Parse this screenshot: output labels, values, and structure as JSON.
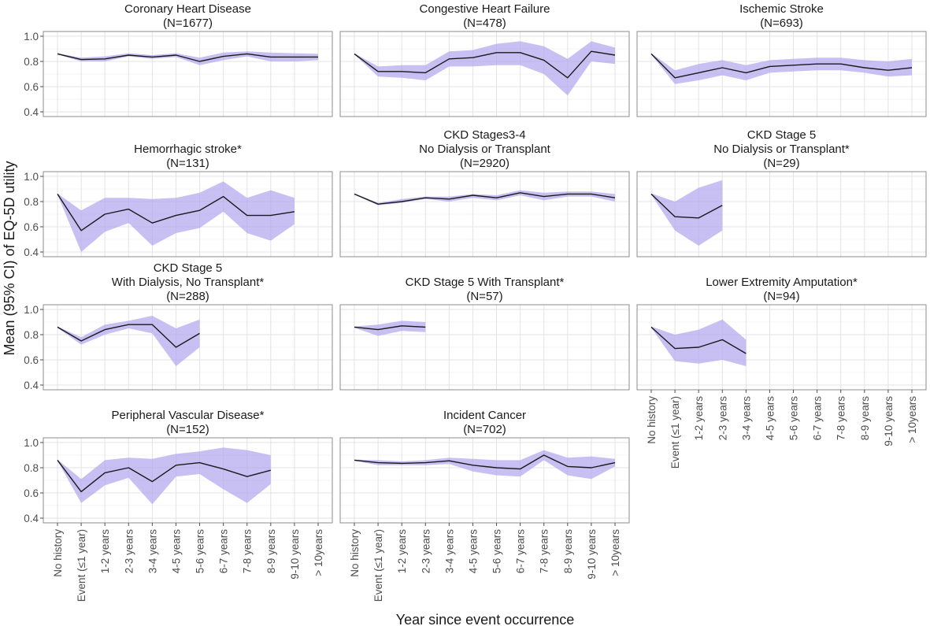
{
  "chart_data": {
    "type": "line",
    "figure": {
      "ylabel": "Mean (95% CI) of EQ-5D utility",
      "xlabel": "Year since event occurrence",
      "ylim": [
        0.4,
        1.0
      ],
      "yticks": [
        0.4,
        0.6,
        0.8,
        1.0
      ],
      "ytick_labels": [
        "0.4",
        "0.6",
        "0.8",
        "1.0"
      ],
      "categories": [
        "No history",
        "Event (≤1 year)",
        "1-2 years",
        "2-3 years",
        "3-4 years",
        "4-5 years",
        "5-6 years",
        "6-7 years",
        "7-8 years",
        "8-9 years",
        "9-10 years",
        "> 10years"
      ],
      "categories_alt": [
        "No history",
        "Event (≤1 year)",
        "1-2 years",
        "2-3 years",
        "3-4 years",
        "4-5 years",
        "5-6 years",
        "6-7 years",
        "7-8 years",
        "8-9 years",
        "9-10 years",
        "> 10years"
      ],
      "grid": true,
      "band_color": "#b3a8ef",
      "line_color": "#1a1a1a"
    },
    "panels": [
      {
        "title": [
          "Coronary Heart Disease",
          "(N=1677)"
        ],
        "mean": [
          0.86,
          0.815,
          0.82,
          0.85,
          0.835,
          0.85,
          0.8,
          0.84,
          0.86,
          0.835,
          0.835,
          0.835
        ],
        "lower": [
          0.855,
          0.8,
          0.8,
          0.84,
          0.82,
          0.835,
          0.77,
          0.81,
          0.84,
          0.8,
          0.8,
          0.81
        ],
        "upper": [
          0.865,
          0.83,
          0.84,
          0.865,
          0.85,
          0.865,
          0.83,
          0.87,
          0.88,
          0.87,
          0.865,
          0.86
        ]
      },
      {
        "title": [
          "Congestive Heart Failure",
          "(N=478)"
        ],
        "mean": [
          0.86,
          0.72,
          0.72,
          0.71,
          0.82,
          0.83,
          0.87,
          0.87,
          0.81,
          0.67,
          0.88,
          0.85
        ],
        "lower": [
          0.855,
          0.68,
          0.67,
          0.65,
          0.76,
          0.76,
          0.77,
          0.77,
          0.7,
          0.53,
          0.8,
          0.78
        ],
        "upper": [
          0.865,
          0.76,
          0.77,
          0.77,
          0.88,
          0.89,
          0.94,
          0.96,
          0.92,
          0.82,
          0.96,
          0.91
        ]
      },
      {
        "title": [
          "Ischemic Stroke",
          "(N=693)"
        ],
        "mean": [
          0.86,
          0.67,
          0.71,
          0.75,
          0.71,
          0.76,
          0.77,
          0.78,
          0.78,
          0.75,
          0.73,
          0.75
        ],
        "lower": [
          0.855,
          0.62,
          0.65,
          0.69,
          0.65,
          0.71,
          0.72,
          0.73,
          0.73,
          0.71,
          0.68,
          0.69
        ],
        "upper": [
          0.865,
          0.73,
          0.78,
          0.81,
          0.77,
          0.81,
          0.82,
          0.83,
          0.83,
          0.81,
          0.8,
          0.82
        ]
      },
      {
        "title": [
          "Hemorrhagic stroke*",
          "(N=131)"
        ],
        "mean": [
          0.86,
          0.57,
          0.7,
          0.74,
          0.63,
          0.69,
          0.73,
          0.84,
          0.69,
          0.69,
          0.72,
          null
        ],
        "lower": [
          0.855,
          0.4,
          0.56,
          0.63,
          0.45,
          0.55,
          0.59,
          0.72,
          0.55,
          0.49,
          0.62,
          null
        ],
        "upper": [
          0.865,
          0.73,
          0.83,
          0.83,
          0.82,
          0.83,
          0.87,
          0.96,
          0.83,
          0.89,
          0.83,
          null
        ]
      },
      {
        "title": [
          "CKD Stages3-4",
          "No Dialysis or Transplant",
          "(N=2920)"
        ],
        "mean": [
          0.86,
          0.78,
          0.8,
          0.83,
          0.82,
          0.85,
          0.83,
          0.87,
          0.84,
          0.86,
          0.86,
          0.83
        ],
        "lower": [
          0.855,
          0.77,
          0.79,
          0.82,
          0.8,
          0.83,
          0.81,
          0.85,
          0.81,
          0.84,
          0.84,
          0.8
        ],
        "upper": [
          0.865,
          0.79,
          0.82,
          0.84,
          0.84,
          0.86,
          0.85,
          0.89,
          0.87,
          0.88,
          0.88,
          0.86
        ]
      },
      {
        "title": [
          "CKD Stage 5",
          "No Dialysis or Transplant*",
          "(N=29)"
        ],
        "mean": [
          0.86,
          0.68,
          0.67,
          0.77,
          null,
          null,
          null,
          null,
          null,
          null,
          null,
          null
        ],
        "lower": [
          0.855,
          0.57,
          0.45,
          0.57,
          null,
          null,
          null,
          null,
          null,
          null,
          null,
          null
        ],
        "upper": [
          0.865,
          0.8,
          0.91,
          0.97,
          null,
          null,
          null,
          null,
          null,
          null,
          null,
          null
        ]
      },
      {
        "title": [
          "CKD Stage 5",
          "With Dialysis, No Transplant*",
          "(N=288)"
        ],
        "mean": [
          0.86,
          0.75,
          0.84,
          0.88,
          0.88,
          0.7,
          0.81,
          null,
          null,
          null,
          null,
          null
        ],
        "lower": [
          0.855,
          0.72,
          0.8,
          0.85,
          0.81,
          0.55,
          0.7,
          null,
          null,
          null,
          null,
          null
        ],
        "upper": [
          0.865,
          0.78,
          0.88,
          0.91,
          0.95,
          0.85,
          0.92,
          null,
          null,
          null,
          null,
          null
        ]
      },
      {
        "title": [
          "CKD Stage 5 With Transplant*",
          "(N=57)"
        ],
        "mean": [
          0.86,
          0.84,
          0.87,
          0.86,
          null,
          null,
          null,
          null,
          null,
          null,
          null,
          null
        ],
        "lower": [
          0.855,
          0.79,
          0.83,
          0.82,
          null,
          null,
          null,
          null,
          null,
          null,
          null,
          null
        ],
        "upper": [
          0.865,
          0.88,
          0.91,
          0.9,
          null,
          null,
          null,
          null,
          null,
          null,
          null,
          null
        ]
      },
      {
        "title": [
          "Lower Extremity Amputation*",
          "(N=94)"
        ],
        "mean": [
          0.86,
          0.69,
          0.7,
          0.76,
          0.65,
          null,
          null,
          null,
          null,
          null,
          null,
          null
        ],
        "lower": [
          0.855,
          0.59,
          0.57,
          0.6,
          0.55,
          null,
          null,
          null,
          null,
          null,
          null,
          null
        ],
        "upper": [
          0.865,
          0.8,
          0.84,
          0.92,
          0.76,
          null,
          null,
          null,
          null,
          null,
          null,
          null
        ]
      },
      {
        "title": [
          "Peripheral Vascular Disease*",
          "(N=152)"
        ],
        "mean": [
          0.86,
          0.61,
          0.76,
          0.8,
          0.69,
          0.82,
          0.84,
          0.79,
          0.73,
          0.78,
          null,
          null
        ],
        "lower": [
          0.855,
          0.52,
          0.66,
          0.72,
          0.51,
          0.73,
          0.75,
          0.63,
          0.52,
          0.67,
          null,
          null
        ],
        "upper": [
          0.865,
          0.71,
          0.86,
          0.88,
          0.87,
          0.91,
          0.93,
          0.96,
          0.94,
          0.9,
          null,
          null
        ]
      },
      {
        "title": [
          "Incident Cancer",
          "(N=702)"
        ],
        "mean": [
          0.86,
          0.84,
          0.835,
          0.84,
          0.855,
          0.82,
          0.8,
          0.79,
          0.9,
          0.81,
          0.8,
          0.84
        ],
        "lower": [
          0.855,
          0.82,
          0.82,
          0.82,
          0.83,
          0.77,
          0.74,
          0.73,
          0.86,
          0.74,
          0.71,
          0.81
        ],
        "upper": [
          0.865,
          0.86,
          0.85,
          0.86,
          0.88,
          0.87,
          0.86,
          0.86,
          0.94,
          0.88,
          0.89,
          0.87
        ]
      }
    ]
  }
}
